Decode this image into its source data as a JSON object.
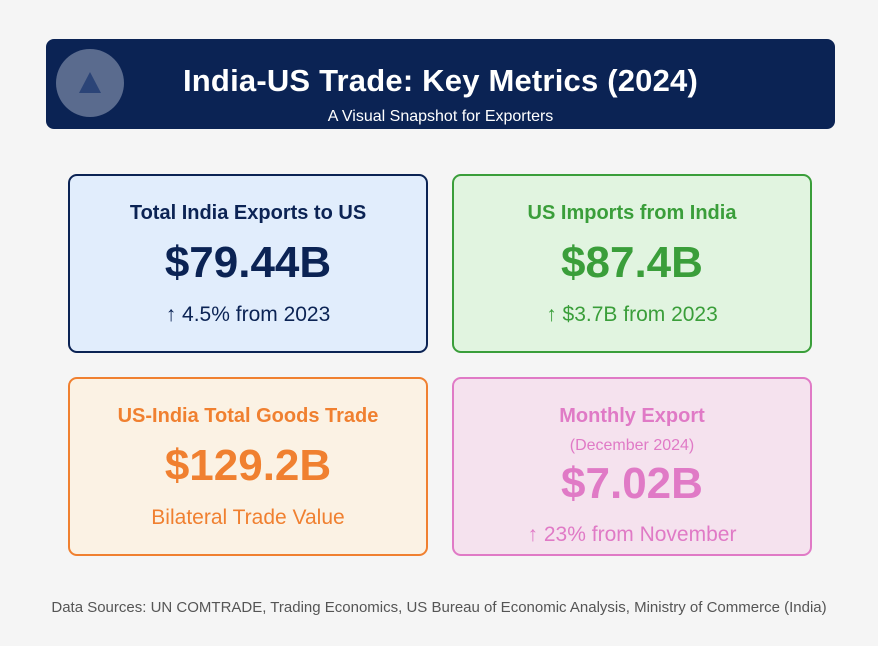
{
  "header": {
    "title": "India-US Trade: Key Metrics (2024)",
    "subtitle": "A Visual Snapshot for Exporters",
    "logo_icon": "triangle-up-icon"
  },
  "cards": [
    {
      "label": "Total India Exports to US",
      "value": "$79.44B",
      "note": "↑ 4.5% from 2023",
      "color": "#0b2354"
    },
    {
      "label": "US Imports from India",
      "value": "$87.4B",
      "note": "↑ $3.7B from 2023",
      "color": "#3a9e3a"
    },
    {
      "label": "US-India Total Goods Trade",
      "value": "$129.2B",
      "note": "Bilateral Trade Value",
      "color": "#f08030"
    },
    {
      "label": "Monthly Export",
      "sub": "(December 2024)",
      "value": "$7.02B",
      "note": "↑ 23% from November",
      "color": "#e07ac6"
    }
  ],
  "footer": {
    "sources": "Data Sources: UN COMTRADE, Trading Economics, US Bureau of Economic Analysis, Ministry of Commerce (India)"
  }
}
